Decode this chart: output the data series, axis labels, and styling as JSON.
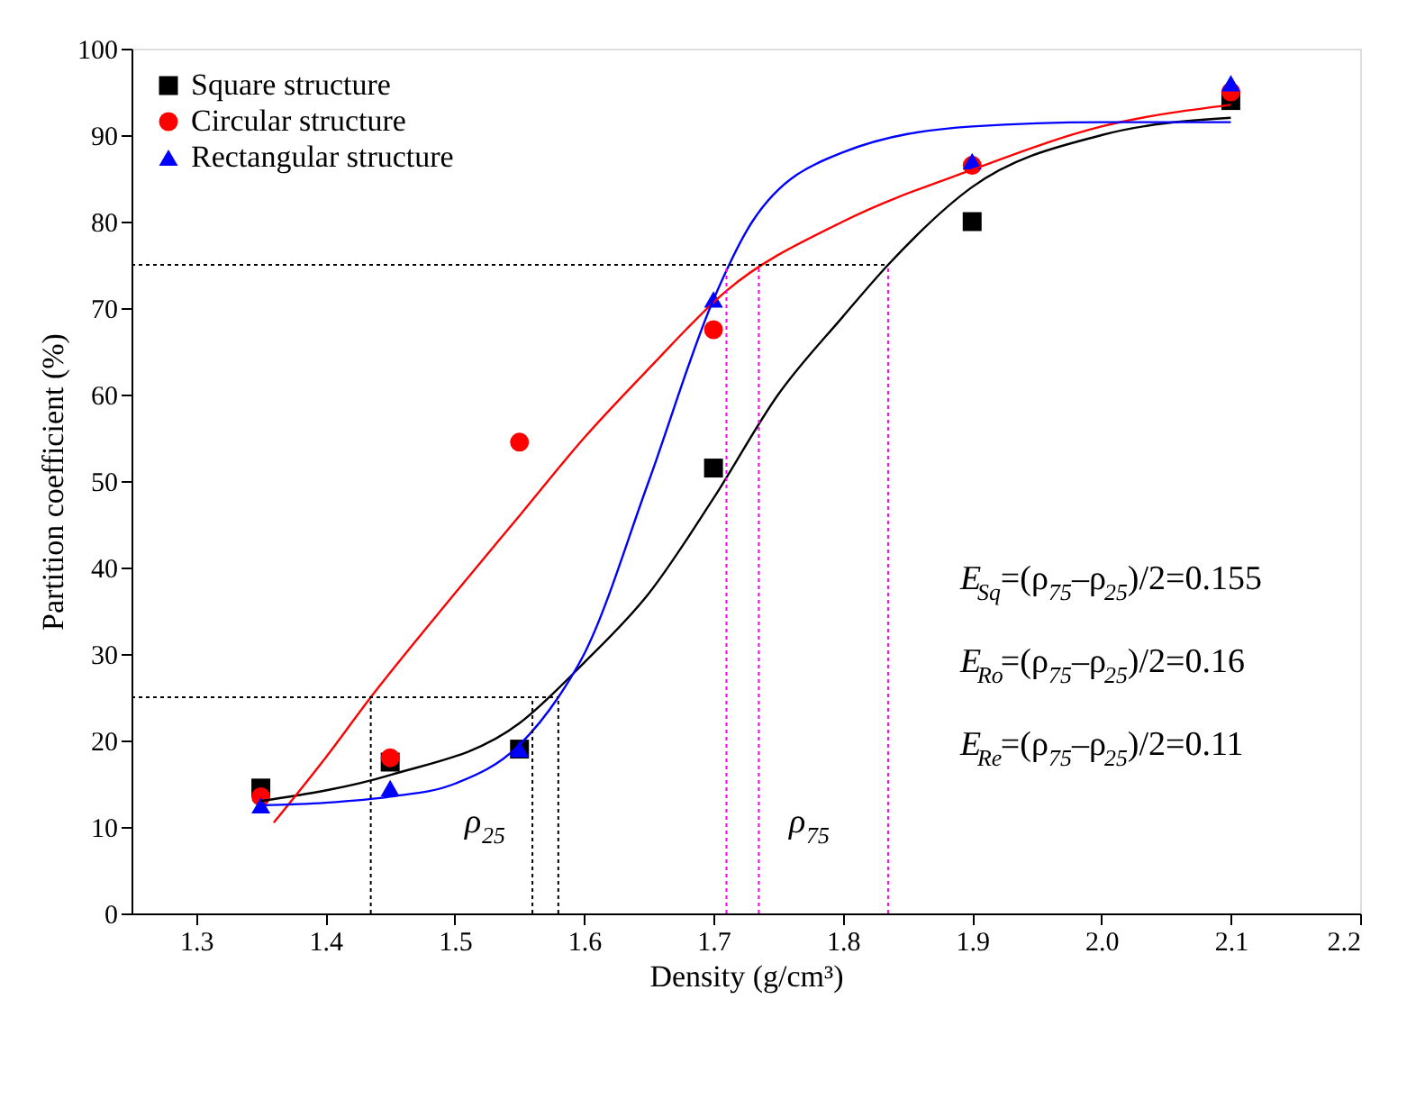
{
  "chart_data": {
    "type": "scatter",
    "xlabel": "Density (g/cm³)",
    "ylabel": "Partition coefficient (%)",
    "xlim": [
      1.25,
      2.2
    ],
    "xticks": [
      1.3,
      1.4,
      1.5,
      1.6,
      1.7,
      1.8,
      1.9,
      {
        "value": 2.0,
        "label": "2.0"
      },
      2.1,
      2.2
    ],
    "ylim": [
      0,
      100
    ],
    "yticks": [
      0,
      10,
      20,
      30,
      40,
      50,
      60,
      70,
      80,
      90,
      100
    ],
    "grid": false,
    "legend": "top left",
    "x": [
      1.35,
      1.45,
      1.55,
      1.7,
      1.9,
      2.1
    ],
    "series": [
      {
        "name": "Square structure",
        "color": "#000000",
        "marker": "square",
        "values": [
          14.5,
          17.5,
          19,
          51.5,
          80,
          94
        ]
      },
      {
        "name": "Circular structure",
        "color": "#ff0000",
        "marker": "circle",
        "values": [
          13.5,
          18,
          54.5,
          67.5,
          86.5,
          95
        ]
      },
      {
        "name": "Rectangular structure",
        "color": "#0000ff",
        "marker": "triangle",
        "values": [
          12.5,
          14.5,
          19,
          71,
          87,
          96
        ]
      },
      {
        "type": "line",
        "color": "#000000",
        "x": [
          1.35,
          1.45,
          1.55,
          1.6,
          1.65,
          1.7,
          1.75,
          1.8,
          1.835,
          1.9,
          2.0,
          2.1
        ],
        "values": [
          13,
          16,
          22,
          29,
          37,
          48,
          60,
          69,
          75,
          84,
          90,
          92
        ]
      },
      {
        "type": "line",
        "color": "#ff0000",
        "x": [
          1.36,
          1.4,
          1.435,
          1.5,
          1.55,
          1.6,
          1.65,
          1.71,
          1.8,
          1.9,
          2.0,
          2.1
        ],
        "values": [
          10.5,
          18,
          25,
          37,
          46,
          55,
          63,
          72,
          80,
          86,
          91,
          93.5
        ]
      },
      {
        "type": "line",
        "color": "#0000ff",
        "x": [
          1.35,
          1.4,
          1.45,
          1.5,
          1.55,
          1.58,
          1.6,
          1.65,
          1.7,
          1.73,
          1.8,
          1.9,
          2.0,
          2.1
        ],
        "values": [
          12.5,
          12.8,
          13.5,
          15,
          19.5,
          25,
          30,
          50,
          71,
          80,
          88,
          91,
          91.5,
          91.5
        ]
      }
    ],
    "ref_lines": [
      {
        "axis": "y",
        "value": 75,
        "color": "#000000",
        "line_style": "dotted"
      },
      {
        "axis": "y",
        "value": 25,
        "color": "#000000",
        "line_style": "dotted"
      },
      {
        "axis": "x",
        "value": 1.435,
        "color": "#000000",
        "line_style": "dotted"
      },
      {
        "axis": "x",
        "value": 1.56,
        "color": "#000000",
        "line_style": "dotted"
      },
      {
        "axis": "x",
        "value": 1.58,
        "color": "#000000",
        "line_style": "dotted"
      },
      {
        "axis": "x",
        "value": 1.71,
        "color": "#ff00ff",
        "line_style": "dotted"
      },
      {
        "axis": "x",
        "value": 1.735,
        "color": "#ff00ff",
        "line_style": "dotted"
      },
      {
        "axis": "x",
        "value": 1.835,
        "color": "#ff00ff",
        "line_style": "dotted"
      }
    ],
    "annotations": [
      "ρ$_{25}$",
      "ρ$_{75}$",
      "E$_{Sq}$=(ρ$_{75}$–ρ$_{25}$)/2=0.155",
      "E$_{Ro}$=(ρ$_{75}$–ρ$_{25}$)/2=0.16",
      "E$_{Re}$=(ρ$_{75}$–ρ$_{25}$)/2=0.11"
    ]
  }
}
